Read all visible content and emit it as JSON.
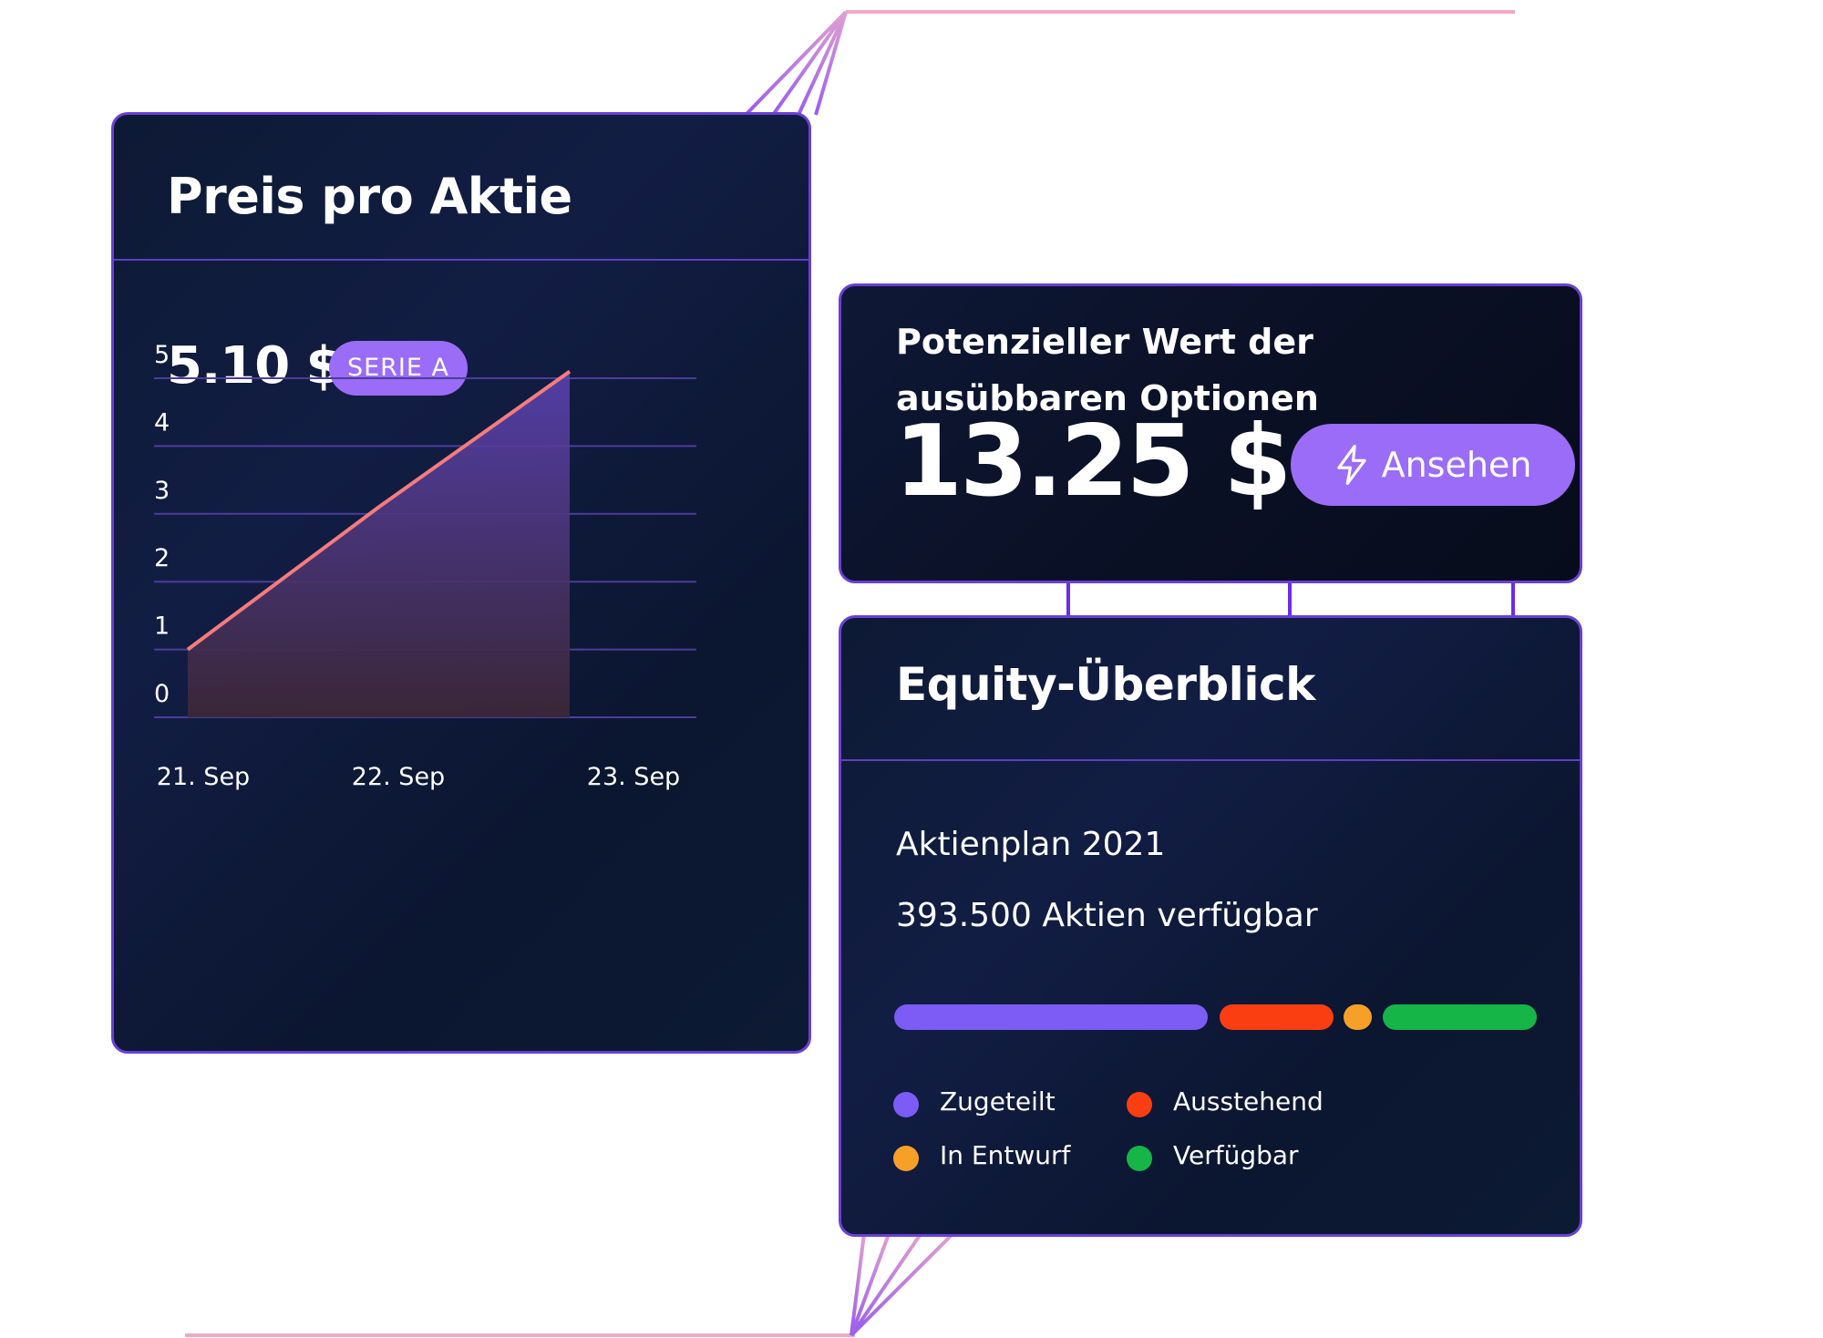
{
  "price_card": {
    "title": "Preis pro Aktie",
    "price": "5.10 $",
    "badge": "SERIE A"
  },
  "chart_data": {
    "type": "area",
    "title": "",
    "xlabel": "",
    "ylabel": "",
    "categories": [
      "21. Sep",
      "22. Sep",
      "23. Sep"
    ],
    "x": [
      0,
      1,
      2
    ],
    "series": [
      {
        "values": [
          1,
          3.1,
          5.1
        ]
      }
    ],
    "y_ticks": [
      "0",
      "1",
      "2",
      "3",
      "4",
      "5"
    ],
    "ylim": [
      0,
      5
    ],
    "grid": true,
    "colors": {
      "line": "#f47c7c",
      "grid": "#4b3d9c",
      "fill_top": "#5d43b5",
      "fill_bottom": "#3b2736"
    }
  },
  "options_card": {
    "title": "Potenzieller Wert der ausübbaren Optionen",
    "value": "13.25 $",
    "button_label": "Ansehen",
    "button_icon": "lightning-icon"
  },
  "equity_card": {
    "title": "Equity-Überblick",
    "plan": "Aktienplan 2021",
    "available": "393.500 Aktien verfügbar",
    "distribution": [
      {
        "label": "Zugeteilt",
        "color": "#7c5cf5"
      },
      {
        "label": "Ausstehend",
        "color": "#fa3e12"
      },
      {
        "label": "In Entwurf",
        "color": "#f7a027"
      },
      {
        "label": "Verfügbar",
        "color": "#15b547"
      }
    ]
  },
  "colors": {
    "card_bg": "#0d1a33",
    "card_border": "#6a40d6",
    "accent": "#9a6cf7",
    "connector_purple": "#6a2cf0",
    "connector_pink": "#eeaac4"
  }
}
